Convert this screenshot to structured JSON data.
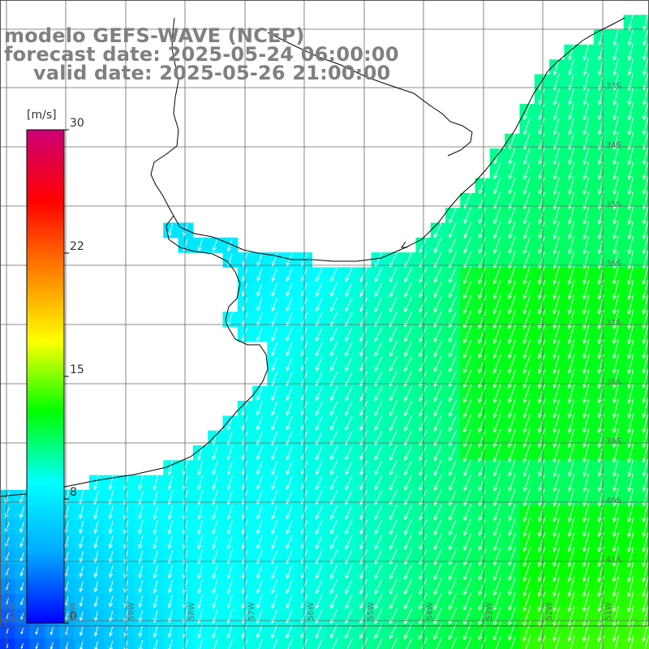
{
  "title": {
    "line1": "modelo GEFS-WAVE (NCEP)",
    "line2": "forecast date: 2025-05-24 06:00:00",
    "line3": "valid date: 2025-05-26 21:00:00"
  },
  "colorbar": {
    "unit": "[m/s]",
    "ticks": [
      {
        "label": "30",
        "value": 30
      },
      {
        "label": "22",
        "value": 22
      },
      {
        "label": "15",
        "value": 15
      },
      {
        "label": "8",
        "value": 8
      },
      {
        "label": "0",
        "value": 0
      }
    ],
    "min": 0,
    "max": 30,
    "stops": [
      "#0000ff",
      "#00aaff",
      "#00ffff",
      "#00ff00",
      "#ffff00",
      "#ff8000",
      "#ff0000",
      "#cc0077"
    ]
  },
  "axes": {
    "lat_labels": [
      "33S",
      "34S",
      "35S",
      "36S",
      "37S",
      "38S",
      "39S",
      "40S",
      "41S"
    ],
    "lon_labels": [
      "61W",
      "60W",
      "59W",
      "58W",
      "57W",
      "56W",
      "55W",
      "54W",
      "53W",
      "52W",
      "51W"
    ]
  },
  "colors": {
    "land": "#ffffff",
    "grid": "#666666",
    "coast": "#000000",
    "arrow": "#ffffff"
  },
  "field": {
    "parameter": "wind speed and direction",
    "units": "m/s",
    "general_direction": "toward south-southwest",
    "range_shown": "approximately 4 to 13 m/s"
  }
}
